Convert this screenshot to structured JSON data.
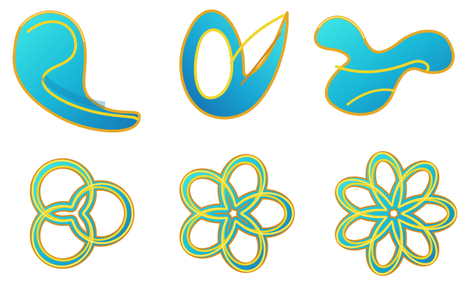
{
  "scene": {
    "background": "#ffffff",
    "colors": {
      "ribbon_light": "#3fe9e6",
      "ribbon_mid": "#19b8d8",
      "ribbon_dark": "#1577b7",
      "edge_yellow": "#f1d62a",
      "edge_orange": "#d7881c",
      "edge_highlight": "#fff27a"
    },
    "rows": [
      {
        "row": "top",
        "items": [
          {
            "name": "twisted-band",
            "kind": "twisted-loop"
          },
          {
            "name": "folded-loop",
            "kind": "folded-loop"
          },
          {
            "name": "figure-eight-band",
            "kind": "double-loop"
          }
        ]
      },
      {
        "row": "bottom",
        "items": [
          {
            "name": "three-lobe-knot",
            "kind": "torus-knot",
            "p": 2,
            "q": 3
          },
          {
            "name": "five-lobe-knot",
            "kind": "torus-knot",
            "p": 2,
            "q": 5
          },
          {
            "name": "seven-lobe-knot",
            "kind": "torus-knot",
            "p": 2,
            "q": 7
          }
        ]
      }
    ]
  }
}
